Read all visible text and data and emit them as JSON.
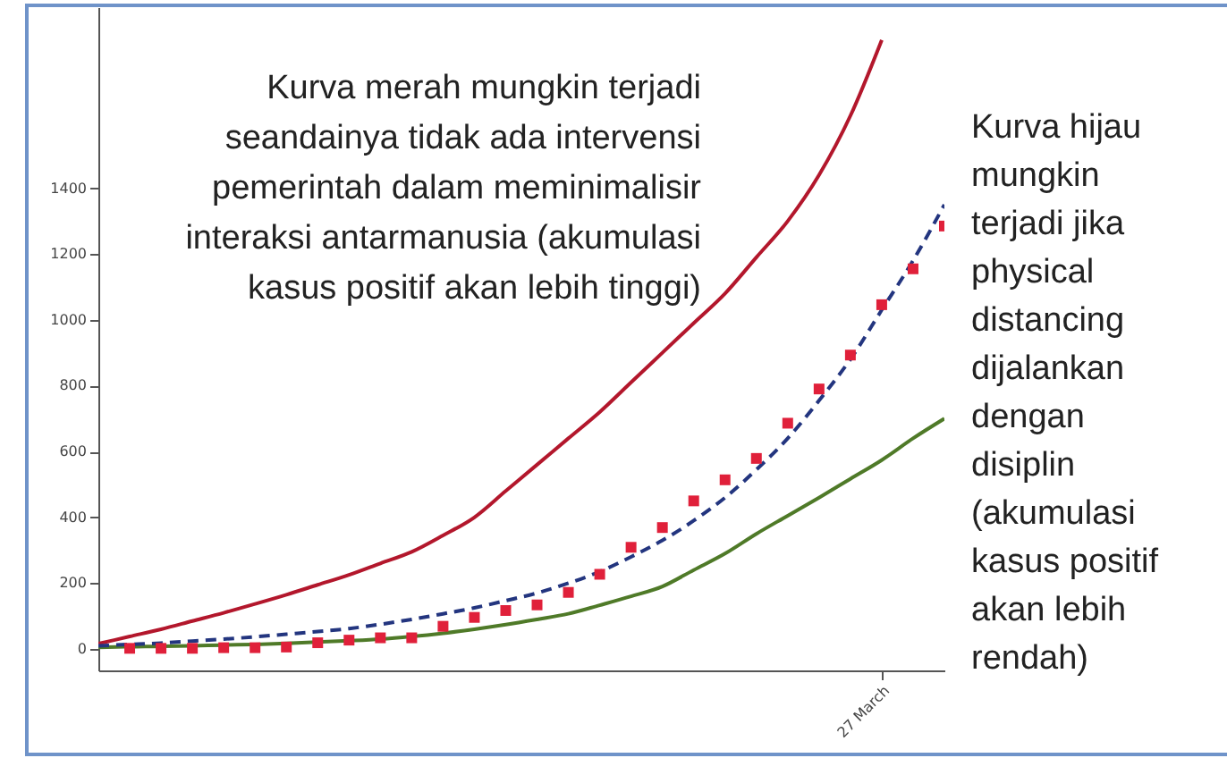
{
  "chart_data": {
    "type": "line",
    "annotations": [
      "Kurva merah mungkin terjadi seandainya tidak ada intervensi pemerintah dalam meminimalisir interaksi antarmanusia (akumulasi kasus positif akan lebih tinggi)",
      "Kurva hijau mungkin terjadi jika physical distancing dijalankan dengan disiplin (akumulasi kasus positif akan lebih rendah)"
    ],
    "categories": [
      null,
      null,
      null,
      null,
      null,
      null,
      null,
      null,
      null,
      null,
      null,
      null,
      null,
      null,
      null,
      null,
      null,
      null,
      null,
      null,
      null,
      null,
      null,
      null,
      null,
      "27 March",
      null,
      null
    ],
    "ylim": [
      -65,
      1950
    ],
    "yticks": [
      0,
      200,
      400,
      600,
      800,
      1000,
      1200,
      1400
    ],
    "series": [
      {
        "color": "#b3172c",
        "values": [
          16,
          38,
          60,
          85,
          110,
          137,
          165,
          195,
          225,
          260,
          295,
          345,
          400,
          480,
          560,
          640,
          720,
          810,
          900,
          990,
          1080,
          1190,
          1300,
          1440,
          1620,
          1850,
          null,
          null
        ]
      },
      {
        "color": "#4f7a28",
        "values": [
          5,
          7,
          8,
          10,
          12,
          14,
          17,
          21,
          25,
          30,
          38,
          48,
          60,
          74,
          90,
          107,
          133,
          160,
          190,
          240,
          290,
          350,
          405,
          460,
          517,
          574,
          640,
          700
        ]
      },
      {
        "color": "#23357f",
        "line_style": "dashed",
        "values": [
          10,
          14,
          18,
          24,
          30,
          37,
          45,
          53,
          62,
          75,
          90,
          107,
          125,
          147,
          170,
          200,
          235,
          280,
          330,
          390,
          460,
          545,
          640,
          755,
          880,
          1030,
          1180,
          1350
        ]
      },
      {
        "type": "scatter",
        "color": "#e0203a",
        "marker": "square",
        "values": [
          null,
          2,
          2,
          2,
          4,
          4,
          6,
          19,
          27,
          34,
          34,
          69,
          96,
          117,
          134,
          172,
          227,
          309,
          369,
          450,
          514,
          579,
          686,
          790,
          893,
          1046,
          1155,
          1285
        ]
      }
    ]
  }
}
